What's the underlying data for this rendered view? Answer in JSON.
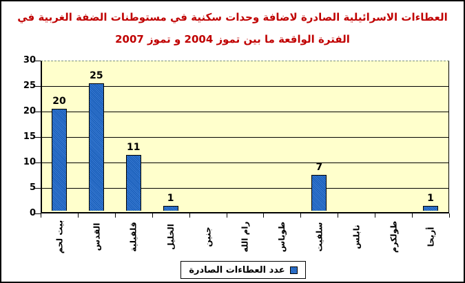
{
  "title": {
    "line1": "العطاءات الاسرائيلية الصادرة لاضافة وحدات سكنية في مستوطنات الضفة الغربية في",
    "line2": "الفترة الواقعة ما بين تموز 2004 و تموز 2007"
  },
  "legend": {
    "label": "عدد العطاءات الصادرة"
  },
  "colors": {
    "title": "#c00000",
    "bar": "#1463cc",
    "plot_bg": "#ffffcc",
    "axis": "#000000"
  },
  "chart_data": {
    "type": "bar",
    "title": "العطاءات الاسرائيلية الصادرة لاضافة وحدات سكنية في مستوطنات الضفة الغربية في الفترة الواقعة ما بين تموز 2004 و تموز 2007",
    "categories": [
      "بيت لحم",
      "القدس",
      "قلقيلية",
      "الخليل",
      "جنين",
      "رام الله",
      "طوباس",
      "سلفيت",
      "نابلس",
      "طولكرم",
      "أريحا"
    ],
    "series": [
      {
        "name": "عدد العطاءات الصادرة",
        "values": [
          20,
          25,
          11,
          1,
          0,
          0,
          0,
          7,
          0,
          0,
          1
        ]
      }
    ],
    "data_labels": [
      20,
      25,
      11,
      1,
      0,
      0,
      0,
      7,
      0,
      0,
      1
    ],
    "xlabel": "",
    "ylabel": "",
    "ylim": [
      0,
      30
    ],
    "yticks": [
      0,
      5,
      10,
      15,
      20,
      25,
      30
    ],
    "grid": true,
    "legend_position": "bottom",
    "x_labels_rotated_degrees": 90
  }
}
